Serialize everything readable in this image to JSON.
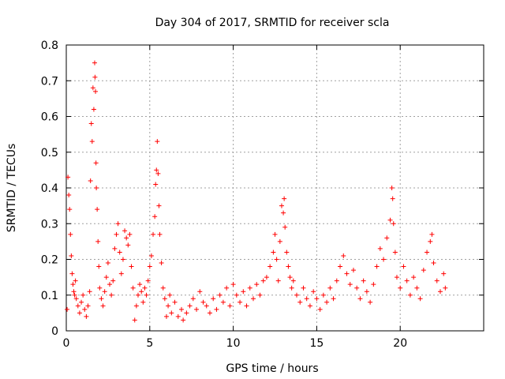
{
  "chart_data": {
    "type": "scatter",
    "title": "Day 304 of 2017, SRMTID for receiver scla",
    "xlabel": "GPS time / hours",
    "ylabel": "SRMTID / TECUs",
    "xlim": [
      0,
      25
    ],
    "ylim": [
      0,
      0.8
    ],
    "xticks": [
      0,
      5,
      10,
      15,
      20
    ],
    "yticks": [
      0,
      0.1,
      0.2,
      0.3,
      0.4,
      0.5,
      0.6,
      0.7,
      0.8
    ],
    "xtick_labels": [
      "0",
      "5",
      "10",
      "15",
      "20"
    ],
    "ytick_labels": [
      "0",
      "0.1",
      "0.2",
      "0.3",
      "0.4",
      "0.5",
      "0.6",
      "0.7",
      "0.8"
    ],
    "grid": true,
    "marker": "+",
    "marker_color": "#ff0000",
    "series": [
      {
        "name": "SRMTID",
        "points": [
          [
            0.05,
            0.06
          ],
          [
            0.1,
            0.43
          ],
          [
            0.15,
            0.38
          ],
          [
            0.2,
            0.34
          ],
          [
            0.25,
            0.27
          ],
          [
            0.3,
            0.21
          ],
          [
            0.35,
            0.16
          ],
          [
            0.4,
            0.13
          ],
          [
            0.45,
            0.11
          ],
          [
            0.5,
            0.1
          ],
          [
            0.55,
            0.14
          ],
          [
            0.6,
            0.09
          ],
          [
            0.7,
            0.07
          ],
          [
            0.8,
            0.05
          ],
          [
            0.9,
            0.08
          ],
          [
            1.0,
            0.1
          ],
          [
            1.1,
            0.06
          ],
          [
            1.2,
            0.04
          ],
          [
            1.3,
            0.07
          ],
          [
            1.4,
            0.11
          ],
          [
            1.45,
            0.42
          ],
          [
            1.5,
            0.58
          ],
          [
            1.55,
            0.53
          ],
          [
            1.6,
            0.68
          ],
          [
            1.65,
            0.62
          ],
          [
            1.7,
            0.75
          ],
          [
            1.72,
            0.71
          ],
          [
            1.75,
            0.67
          ],
          [
            1.78,
            0.47
          ],
          [
            1.8,
            0.4
          ],
          [
            1.85,
            0.34
          ],
          [
            1.9,
            0.25
          ],
          [
            1.95,
            0.18
          ],
          [
            2.0,
            0.12
          ],
          [
            2.1,
            0.09
          ],
          [
            2.2,
            0.07
          ],
          [
            2.3,
            0.11
          ],
          [
            2.4,
            0.15
          ],
          [
            2.5,
            0.19
          ],
          [
            2.6,
            0.13
          ],
          [
            2.7,
            0.1
          ],
          [
            2.8,
            0.14
          ],
          [
            2.9,
            0.23
          ],
          [
            3.0,
            0.27
          ],
          [
            3.1,
            0.3
          ],
          [
            3.2,
            0.22
          ],
          [
            3.3,
            0.16
          ],
          [
            3.4,
            0.2
          ],
          [
            3.5,
            0.28
          ],
          [
            3.6,
            0.26
          ],
          [
            3.7,
            0.24
          ],
          [
            3.8,
            0.27
          ],
          [
            3.9,
            0.18
          ],
          [
            4.0,
            0.12
          ],
          [
            4.1,
            0.03
          ],
          [
            4.2,
            0.07
          ],
          [
            4.3,
            0.1
          ],
          [
            4.4,
            0.13
          ],
          [
            4.5,
            0.11
          ],
          [
            4.6,
            0.08
          ],
          [
            4.7,
            0.12
          ],
          [
            4.8,
            0.1
          ],
          [
            4.9,
            0.14
          ],
          [
            5.0,
            0.18
          ],
          [
            5.1,
            0.21
          ],
          [
            5.2,
            0.27
          ],
          [
            5.3,
            0.32
          ],
          [
            5.35,
            0.41
          ],
          [
            5.4,
            0.45
          ],
          [
            5.45,
            0.53
          ],
          [
            5.5,
            0.44
          ],
          [
            5.55,
            0.35
          ],
          [
            5.6,
            0.27
          ],
          [
            5.7,
            0.19
          ],
          [
            5.8,
            0.12
          ],
          [
            5.9,
            0.09
          ],
          [
            6.0,
            0.04
          ],
          [
            6.1,
            0.07
          ],
          [
            6.2,
            0.1
          ],
          [
            6.3,
            0.05
          ],
          [
            6.5,
            0.08
          ],
          [
            6.7,
            0.04
          ],
          [
            6.9,
            0.06
          ],
          [
            7.0,
            0.03
          ],
          [
            7.2,
            0.05
          ],
          [
            7.4,
            0.07
          ],
          [
            7.6,
            0.09
          ],
          [
            7.8,
            0.06
          ],
          [
            8.0,
            0.11
          ],
          [
            8.2,
            0.08
          ],
          [
            8.4,
            0.07
          ],
          [
            8.6,
            0.05
          ],
          [
            8.8,
            0.09
          ],
          [
            9.0,
            0.06
          ],
          [
            9.2,
            0.1
          ],
          [
            9.4,
            0.08
          ],
          [
            9.6,
            0.12
          ],
          [
            9.8,
            0.07
          ],
          [
            10.0,
            0.13
          ],
          [
            10.2,
            0.1
          ],
          [
            10.4,
            0.08
          ],
          [
            10.6,
            0.11
          ],
          [
            10.8,
            0.07
          ],
          [
            11.0,
            0.12
          ],
          [
            11.2,
            0.09
          ],
          [
            11.4,
            0.13
          ],
          [
            11.6,
            0.1
          ],
          [
            11.8,
            0.14
          ],
          [
            12.0,
            0.15
          ],
          [
            12.2,
            0.18
          ],
          [
            12.4,
            0.22
          ],
          [
            12.5,
            0.27
          ],
          [
            12.6,
            0.2
          ],
          [
            12.7,
            0.14
          ],
          [
            12.8,
            0.25
          ],
          [
            12.9,
            0.35
          ],
          [
            13.0,
            0.33
          ],
          [
            13.05,
            0.37
          ],
          [
            13.1,
            0.29
          ],
          [
            13.2,
            0.22
          ],
          [
            13.3,
            0.18
          ],
          [
            13.4,
            0.15
          ],
          [
            13.5,
            0.12
          ],
          [
            13.6,
            0.14
          ],
          [
            13.8,
            0.1
          ],
          [
            14.0,
            0.08
          ],
          [
            14.2,
            0.12
          ],
          [
            14.4,
            0.09
          ],
          [
            14.6,
            0.07
          ],
          [
            14.8,
            0.11
          ],
          [
            15.0,
            0.09
          ],
          [
            15.2,
            0.06
          ],
          [
            15.4,
            0.1
          ],
          [
            15.6,
            0.08
          ],
          [
            15.8,
            0.12
          ],
          [
            16.0,
            0.09
          ],
          [
            16.2,
            0.14
          ],
          [
            16.4,
            0.18
          ],
          [
            16.6,
            0.21
          ],
          [
            16.8,
            0.16
          ],
          [
            17.0,
            0.13
          ],
          [
            17.2,
            0.17
          ],
          [
            17.4,
            0.12
          ],
          [
            17.6,
            0.09
          ],
          [
            17.8,
            0.14
          ],
          [
            18.0,
            0.11
          ],
          [
            18.2,
            0.08
          ],
          [
            18.4,
            0.13
          ],
          [
            18.6,
            0.18
          ],
          [
            18.8,
            0.23
          ],
          [
            19.0,
            0.2
          ],
          [
            19.2,
            0.26
          ],
          [
            19.4,
            0.31
          ],
          [
            19.5,
            0.4
          ],
          [
            19.55,
            0.37
          ],
          [
            19.6,
            0.3
          ],
          [
            19.7,
            0.22
          ],
          [
            19.8,
            0.15
          ],
          [
            20.0,
            0.12
          ],
          [
            20.2,
            0.18
          ],
          [
            20.4,
            0.14
          ],
          [
            20.6,
            0.1
          ],
          [
            20.8,
            0.15
          ],
          [
            21.0,
            0.12
          ],
          [
            21.2,
            0.09
          ],
          [
            21.4,
            0.17
          ],
          [
            21.6,
            0.22
          ],
          [
            21.8,
            0.25
          ],
          [
            21.9,
            0.27
          ],
          [
            22.0,
            0.19
          ],
          [
            22.2,
            0.14
          ],
          [
            22.4,
            0.11
          ],
          [
            22.6,
            0.16
          ],
          [
            22.7,
            0.12
          ]
        ]
      }
    ]
  }
}
